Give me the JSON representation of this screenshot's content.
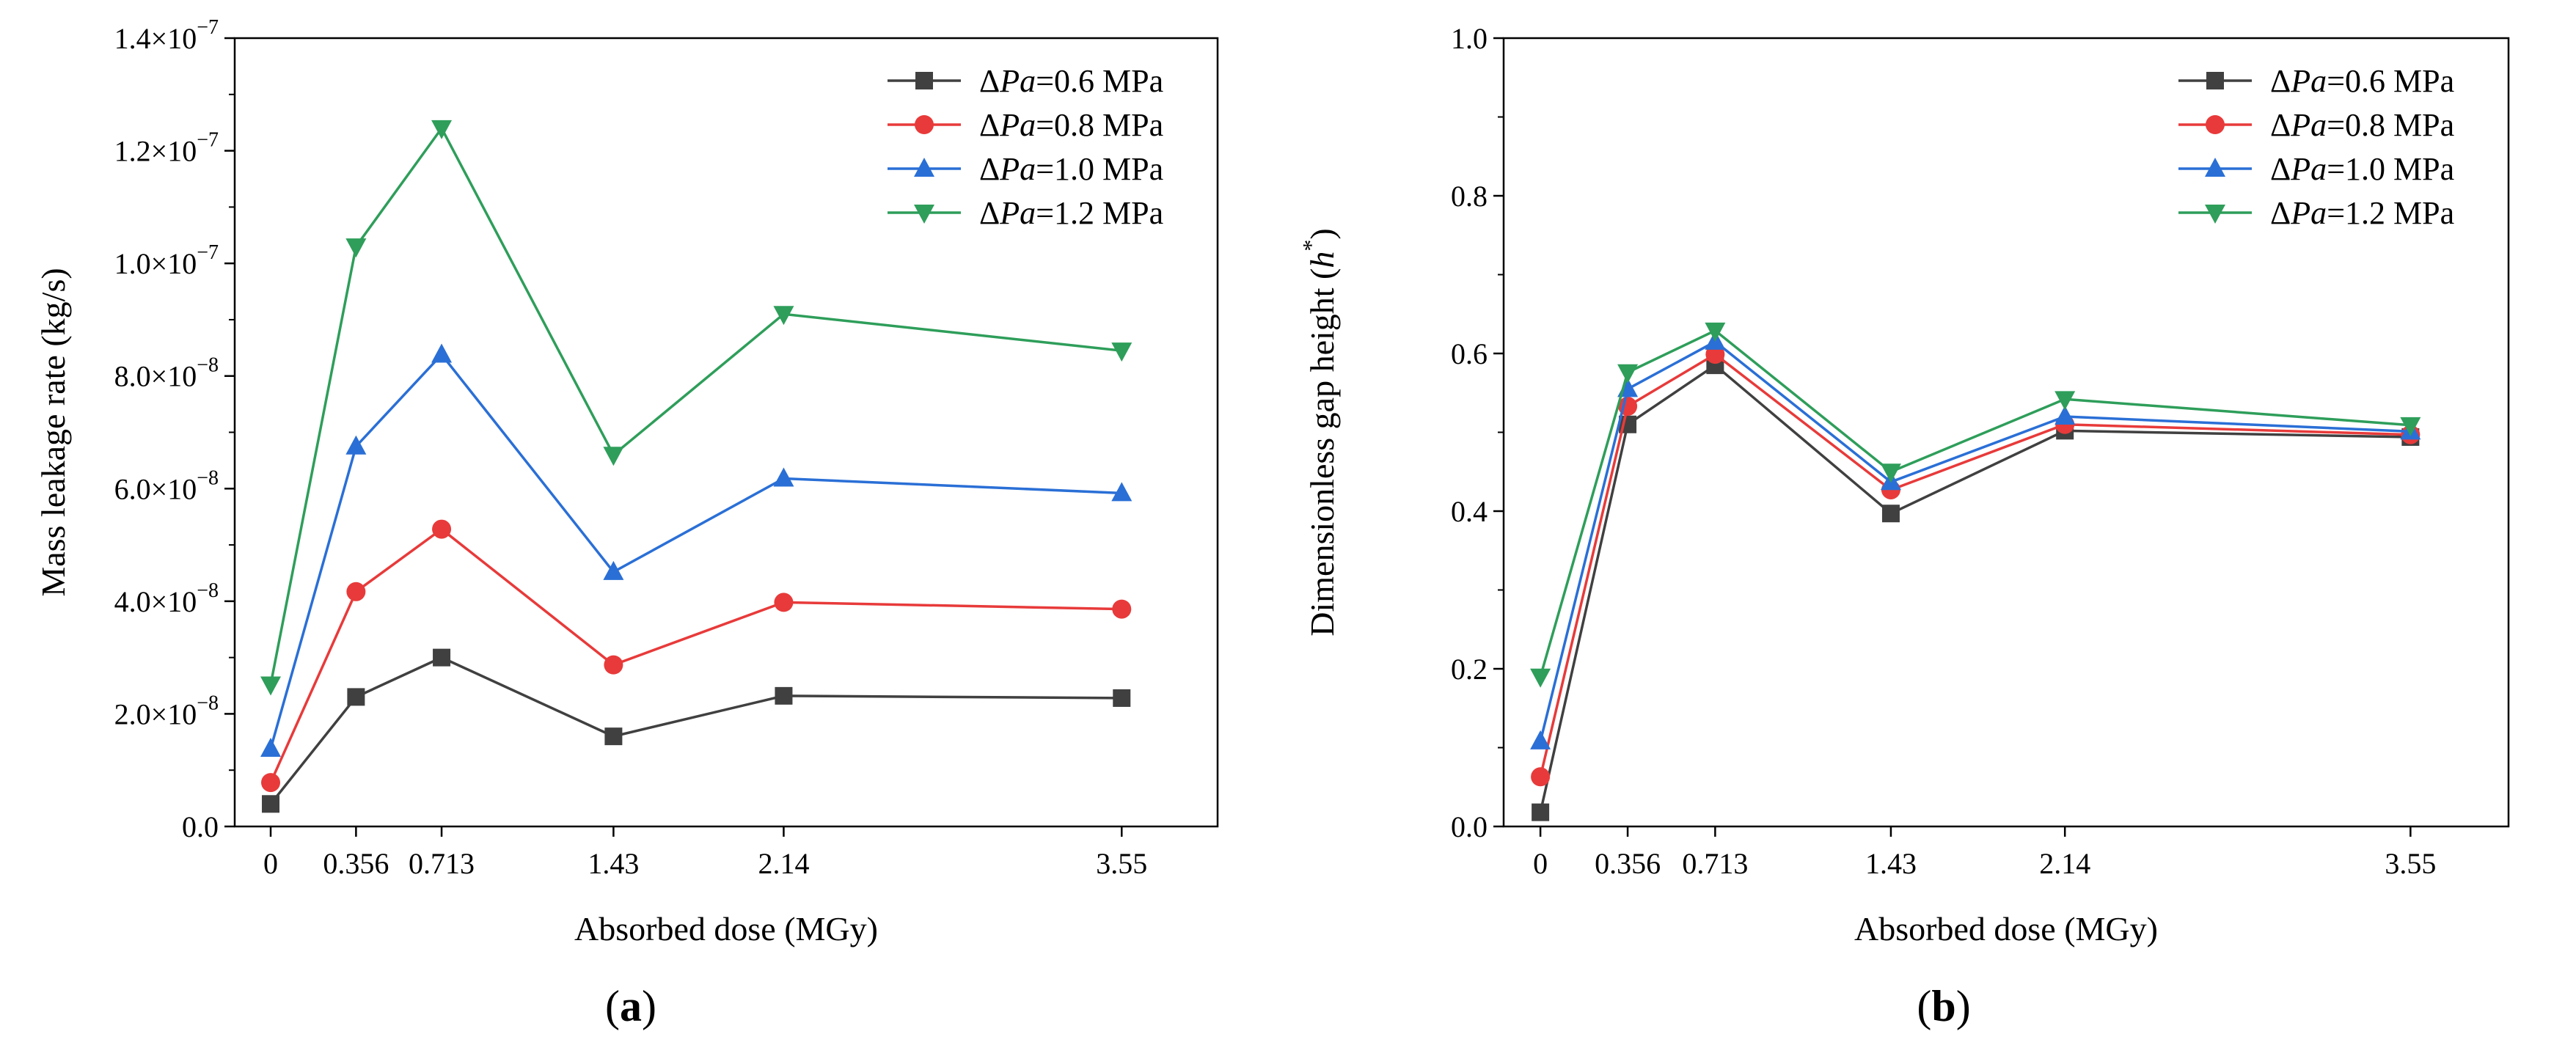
{
  "chart_data": [
    {
      "type": "line",
      "panel_label": "(a)",
      "xlabel": "Absorbed dose (MGy)",
      "ylabel": "Mass leakage rate (kg/s)",
      "x": [
        0,
        0.356,
        0.713,
        1.43,
        2.14,
        3.55
      ],
      "xticks": [
        "0",
        "0.356",
        "0.713",
        "1.43",
        "2.14",
        "3.55"
      ],
      "xlim": [
        -0.15,
        3.95
      ],
      "ylim": [
        0,
        1.4e-07
      ],
      "yticks": [
        {
          "value": 0,
          "mant": "0.0",
          "exp": ""
        },
        {
          "value": 2e-08,
          "mant": "2.0×10",
          "exp": "−8"
        },
        {
          "value": 4e-08,
          "mant": "4.0×10",
          "exp": "−8"
        },
        {
          "value": 6e-08,
          "mant": "6.0×10",
          "exp": "−8"
        },
        {
          "value": 8e-08,
          "mant": "8.0×10",
          "exp": "−8"
        },
        {
          "value": 1e-07,
          "mant": "1.0×10",
          "exp": "−7"
        },
        {
          "value": 1.2e-07,
          "mant": "1.2×10",
          "exp": "−7"
        },
        {
          "value": 1.4e-07,
          "mant": "1.4×10",
          "exp": "−7"
        }
      ],
      "legend_position": "top-right",
      "series": [
        {
          "delta": "Δ",
          "var": "Pa",
          "rest": "=0.6 MPa",
          "color": "#404040",
          "marker": "square",
          "values": [
            4e-09,
            2.3e-08,
            3e-08,
            1.6e-08,
            2.32e-08,
            2.28e-08
          ]
        },
        {
          "delta": "Δ",
          "var": "Pa",
          "rest": "=0.8 MPa",
          "color": "#e83a3a",
          "marker": "circle",
          "values": [
            7.8e-09,
            4.17e-08,
            5.28e-08,
            2.87e-08,
            3.98e-08,
            3.86e-08
          ]
        },
        {
          "delta": "Δ",
          "var": "Pa",
          "rest": "=1.0 MPa",
          "color": "#2a6fd6",
          "marker": "triangle-up",
          "values": [
            1.38e-08,
            6.75e-08,
            8.38e-08,
            4.52e-08,
            6.18e-08,
            5.92e-08
          ]
        },
        {
          "delta": "Δ",
          "var": "Pa",
          "rest": "=1.2 MPa",
          "color": "#2e9e5a",
          "marker": "triangle-down",
          "values": [
            2.52e-08,
            1.03e-07,
            1.24e-07,
            6.6e-08,
            9.1e-08,
            8.45e-08
          ]
        }
      ]
    },
    {
      "type": "line",
      "panel_label": "(b)",
      "xlabel": "Absorbed dose (MGy)",
      "ylabel_main": "Dimensionless gap height (",
      "ylabel_var": "h",
      "ylabel_sup": "*",
      "ylabel_close": ")",
      "x": [
        0,
        0.356,
        0.713,
        1.43,
        2.14,
        3.55
      ],
      "xticks": [
        "0",
        "0.356",
        "0.713",
        "1.43",
        "2.14",
        "3.55"
      ],
      "xlim": [
        -0.15,
        3.95
      ],
      "ylim": [
        0,
        1.0
      ],
      "yticks": [
        {
          "value": 0,
          "mant": "0.0",
          "exp": ""
        },
        {
          "value": 0.2,
          "mant": "0.2",
          "exp": ""
        },
        {
          "value": 0.4,
          "mant": "0.4",
          "exp": ""
        },
        {
          "value": 0.6,
          "mant": "0.6",
          "exp": ""
        },
        {
          "value": 0.8,
          "mant": "0.8",
          "exp": ""
        },
        {
          "value": 1.0,
          "mant": "1.0",
          "exp": ""
        }
      ],
      "legend_position": "top-right",
      "series": [
        {
          "delta": "Δ",
          "var": "Pa",
          "rest": "=0.6 MPa",
          "color": "#404040",
          "marker": "square",
          "values": [
            0.018,
            0.51,
            0.585,
            0.397,
            0.502,
            0.494
          ]
        },
        {
          "delta": "Δ",
          "var": "Pa",
          "rest": "=0.8 MPa",
          "color": "#e83a3a",
          "marker": "circle",
          "values": [
            0.063,
            0.533,
            0.599,
            0.427,
            0.51,
            0.497
          ]
        },
        {
          "delta": "Δ",
          "var": "Pa",
          "rest": "=1.0 MPa",
          "color": "#2a6fd6",
          "marker": "triangle-up",
          "values": [
            0.108,
            0.555,
            0.615,
            0.437,
            0.52,
            0.501
          ]
        },
        {
          "delta": "Δ",
          "var": "Pa",
          "rest": "=1.2 MPa",
          "color": "#2e9e5a",
          "marker": "triangle-down",
          "values": [
            0.19,
            0.576,
            0.629,
            0.45,
            0.542,
            0.509
          ]
        }
      ]
    }
  ]
}
